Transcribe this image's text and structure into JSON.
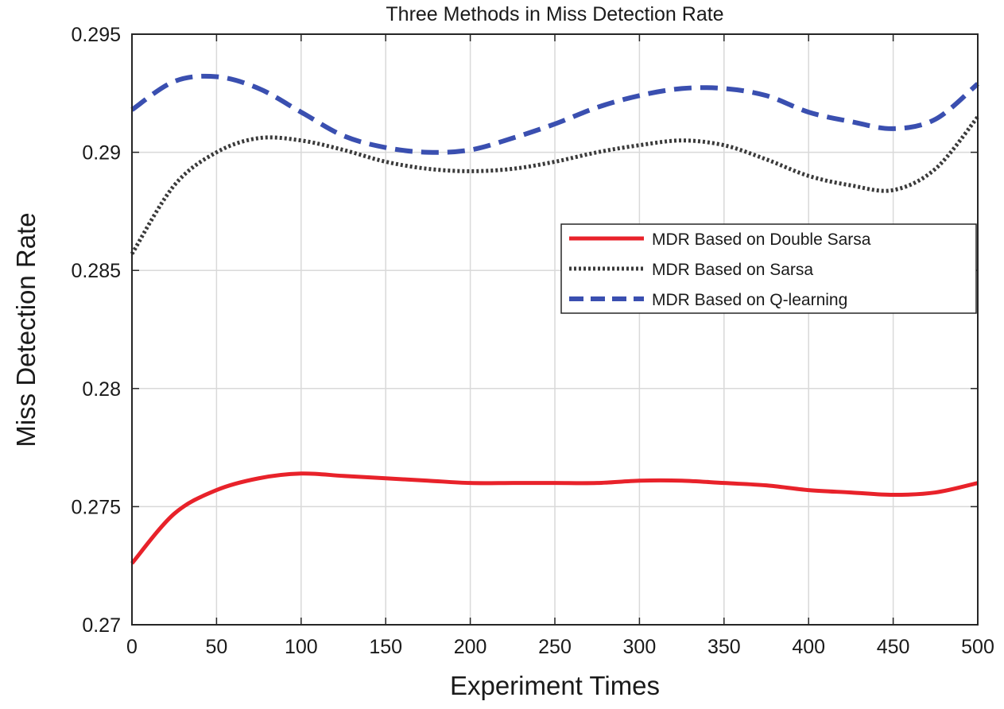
{
  "chart_data": {
    "type": "line",
    "title": "Three Methods in Miss Detection Rate",
    "xlabel": "Experiment Times",
    "ylabel": "Miss Detection Rate",
    "xlim": [
      0,
      500
    ],
    "ylim": [
      0.27,
      0.295
    ],
    "xticks": [
      0,
      50,
      100,
      150,
      200,
      250,
      300,
      350,
      400,
      450,
      500
    ],
    "yticks": [
      0.27,
      0.275,
      0.28,
      0.285,
      0.29,
      0.295
    ],
    "xtick_labels": [
      "0",
      "50",
      "100",
      "150",
      "200",
      "250",
      "300",
      "350",
      "400",
      "450",
      "500"
    ],
    "ytick_labels": [
      "0.27",
      "0.275",
      "0.28",
      "0.285",
      "0.29",
      "0.295"
    ],
    "grid": true,
    "legend_position": "center-right",
    "x": [
      0,
      25,
      50,
      75,
      100,
      125,
      150,
      175,
      200,
      225,
      250,
      275,
      300,
      325,
      350,
      375,
      400,
      425,
      450,
      475,
      500
    ],
    "series": [
      {
        "name": "MDR Based on Double Sarsa",
        "style": "solid",
        "color": "#e8222a",
        "values": [
          0.2726,
          0.2747,
          0.2757,
          0.2762,
          0.2764,
          0.2763,
          0.2762,
          0.2761,
          0.276,
          0.276,
          0.276,
          0.276,
          0.2761,
          0.2761,
          0.276,
          0.2759,
          0.2757,
          0.2756,
          0.2755,
          0.2756,
          0.276
        ]
      },
      {
        "name": "MDR Based on Sarsa",
        "style": "dotted",
        "color": "#3a3a3a",
        "values": [
          0.2857,
          0.2886,
          0.29,
          0.2906,
          0.2905,
          0.2901,
          0.2896,
          0.2893,
          0.2892,
          0.2893,
          0.2896,
          0.29,
          0.2903,
          0.2905,
          0.2903,
          0.2897,
          0.289,
          0.2886,
          0.2884,
          0.2893,
          0.2915
        ]
      },
      {
        "name": "MDR Based on Q-learning",
        "style": "dashed",
        "color": "#3a4fb0",
        "values": [
          0.2918,
          0.293,
          0.2932,
          0.2927,
          0.2917,
          0.2907,
          0.2902,
          0.29,
          0.2901,
          0.2906,
          0.2912,
          0.2919,
          0.2924,
          0.2927,
          0.2927,
          0.2924,
          0.2917,
          0.2913,
          0.291,
          0.2914,
          0.2929
        ]
      }
    ]
  }
}
